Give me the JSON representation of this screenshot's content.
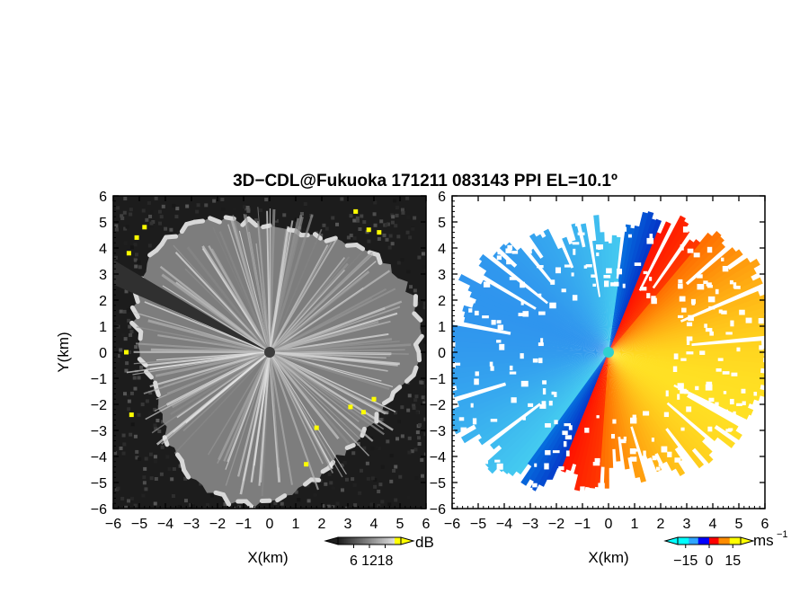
{
  "title": "3D−CDL@Fukuoka 171211 083143 PPI EL=10.1º",
  "chart_data": [
    {
      "type": "heatmap",
      "panel": "reflectivity",
      "xlabel": "X(km)",
      "ylabel": "Y(km)",
      "xlim": [
        -6,
        6
      ],
      "ylim": [
        -6,
        6
      ],
      "x_ticks": [
        "−6",
        "−5",
        "−4",
        "−3",
        "−2",
        "−1",
        "0",
        "1",
        "2",
        "3",
        "4",
        "5",
        "6"
      ],
      "y_ticks": [
        "6",
        "5",
        "4",
        "3",
        "2",
        "1",
        "0",
        "−1",
        "−2",
        "−3",
        "−4",
        "−5",
        "−6"
      ],
      "colorbar": {
        "unit": "dB",
        "ticks": [
          "6",
          "12",
          "18"
        ],
        "tick_values": [
          6,
          12,
          18
        ],
        "range": [
          0,
          24
        ],
        "colors": [
          "#000000",
          "#ffffff",
          "#ffff00"
        ]
      }
    },
    {
      "type": "heatmap",
      "panel": "doppler velocity",
      "xlabel": "X(km)",
      "xlim": [
        -6,
        6
      ],
      "ylim": [
        -6,
        6
      ],
      "x_ticks": [
        "−6",
        "−5",
        "−4",
        "−3",
        "−2",
        "−1",
        "0",
        "1",
        "2",
        "3",
        "4",
        "5",
        "6"
      ],
      "y_ticks": [
        "6",
        "5",
        "4",
        "3",
        "2",
        "1",
        "0",
        "−1",
        "−2",
        "−3",
        "−4",
        "−5",
        "−6"
      ],
      "colorbar": {
        "unit": "ms",
        "unit_exponent": "−1",
        "ticks": [
          "−15",
          "0",
          "15"
        ],
        "tick_values": [
          -15,
          0,
          15
        ],
        "range": [
          -20,
          20
        ],
        "colors": [
          "#00ffff",
          "#2fa5ff",
          "#0000ff",
          "#ff0000",
          "#ff8c00",
          "#ffff00"
        ]
      }
    }
  ]
}
